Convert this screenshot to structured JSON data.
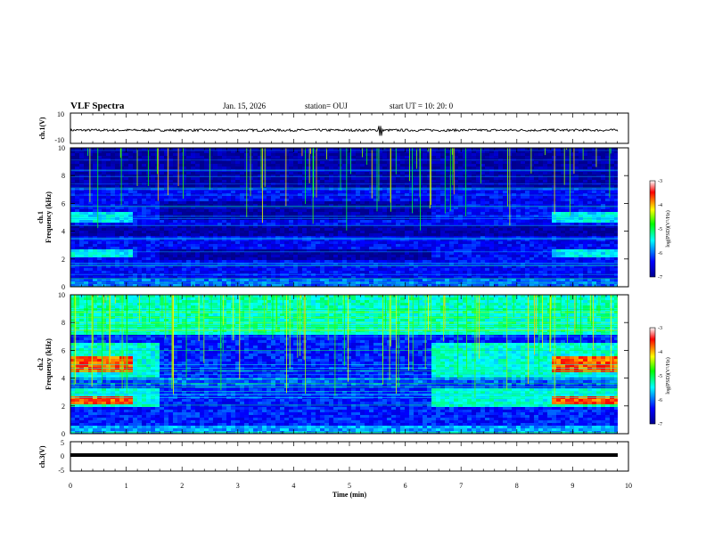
{
  "header": {
    "title": "VLF Spectra",
    "date": "Jan. 15, 2026",
    "station": "station= OUJ",
    "start_ut": "start  UT =   10: 20: 0"
  },
  "colors": {
    "colormap": [
      "#00008f",
      "#0000ff",
      "#00ffff",
      "#00ff00",
      "#ffff00",
      "#ff0000",
      "#ffffff"
    ]
  },
  "chart_data": [
    {
      "type": "line",
      "panel": "ch1-waveform",
      "ylabel": "ch.1(V)",
      "ylim": [
        -10,
        10
      ],
      "yticks": [
        "10",
        "-10"
      ],
      "xlim": [
        0,
        10
      ],
      "series": [
        {
          "values_approx": "noisy waveform centred near -1.5 V, amplitude about ±1 V, brief spike near 5.5 min"
        }
      ]
    },
    {
      "type": "heatmap",
      "panel": "ch1-spectrogram",
      "ylabel_top": "ch.1",
      "ylabel": "Frequency (kHz)",
      "ylim": [
        0,
        10
      ],
      "yticks": [
        "0",
        "2",
        "4",
        "6",
        "8",
        "10"
      ],
      "xlim": [
        0,
        10
      ],
      "colorbar": {
        "label": "log(PSD)(V²/Hz)",
        "range": [
          -7,
          -3
        ],
        "ticks": [
          "-3",
          "-4",
          "-5",
          "-6",
          "-7"
        ]
      },
      "bands": [
        {
          "freq_khz": [
            4.8,
            5.5
          ],
          "time_min": [
            0,
            1.05
          ],
          "level": "medium"
        },
        {
          "freq_khz": [
            4.8,
            5.5
          ],
          "time_min": [
            8.55,
            9.8
          ],
          "level": "medium"
        },
        {
          "freq_khz": [
            2.2,
            2.8
          ],
          "time_min": [
            0,
            1.1
          ],
          "level": "medium"
        },
        {
          "freq_khz": [
            2.2,
            2.8
          ],
          "time_min": [
            8.55,
            9.8
          ],
          "level": "medium"
        },
        {
          "freq_khz": [
            4.9,
            6.2
          ],
          "time_min": [
            1.55,
            6.45
          ],
          "level": "low"
        },
        {
          "freq_khz": [
            2.0,
            2.8
          ],
          "time_min": [
            1.55,
            6.45
          ],
          "level": "low"
        }
      ]
    },
    {
      "type": "heatmap",
      "panel": "ch2-spectrogram",
      "ylabel_top": "ch.2",
      "ylabel": "Frequency (kHz)",
      "ylim": [
        0,
        10
      ],
      "yticks": [
        "0",
        "2",
        "4",
        "6",
        "8",
        "10"
      ],
      "xlim": [
        0,
        10
      ],
      "colorbar": {
        "label": "log(PSD)(V²/Hz)",
        "range": [
          -7,
          -3
        ],
        "ticks": [
          "-3",
          "-4",
          "-5",
          "-6",
          "-7"
        ]
      },
      "bands": [
        {
          "freq_khz": [
            4.6,
            5.6
          ],
          "time_min": [
            0,
            1.1
          ],
          "level": "high"
        },
        {
          "freq_khz": [
            4.6,
            5.6
          ],
          "time_min": [
            8.55,
            9.8
          ],
          "level": "high"
        },
        {
          "freq_khz": [
            2.3,
            2.8
          ],
          "time_min": [
            0,
            1.1
          ],
          "level": "high"
        },
        {
          "freq_khz": [
            2.3,
            2.8
          ],
          "time_min": [
            8.55,
            9.8
          ],
          "level": "high"
        },
        {
          "freq_khz": [
            4.2,
            6.6
          ],
          "time_min": [
            6.45,
            9.8
          ],
          "level": "medium"
        },
        {
          "freq_khz": [
            2.0,
            3.4
          ],
          "time_min": [
            6.45,
            9.8
          ],
          "level": "medium"
        },
        {
          "freq_khz": [
            4.2,
            6.6
          ],
          "time_min": [
            0,
            1.55
          ],
          "level": "medium"
        },
        {
          "freq_khz": [
            2.0,
            3.4
          ],
          "time_min": [
            0,
            1.55
          ],
          "level": "medium"
        }
      ]
    },
    {
      "type": "line",
      "panel": "ch3-waveform",
      "ylabel": "ch.3(V)",
      "ylim": [
        -5,
        5
      ],
      "yticks": [
        "5",
        "0",
        "-5"
      ],
      "xlim": [
        0,
        10
      ],
      "xlabel": "Time (min)",
      "xticks": [
        "0",
        "1",
        "2",
        "3",
        "4",
        "5",
        "6",
        "7",
        "8",
        "9",
        "10"
      ],
      "series": [
        {
          "values_approx": "constant level near -1 V across the full time range"
        }
      ]
    }
  ]
}
